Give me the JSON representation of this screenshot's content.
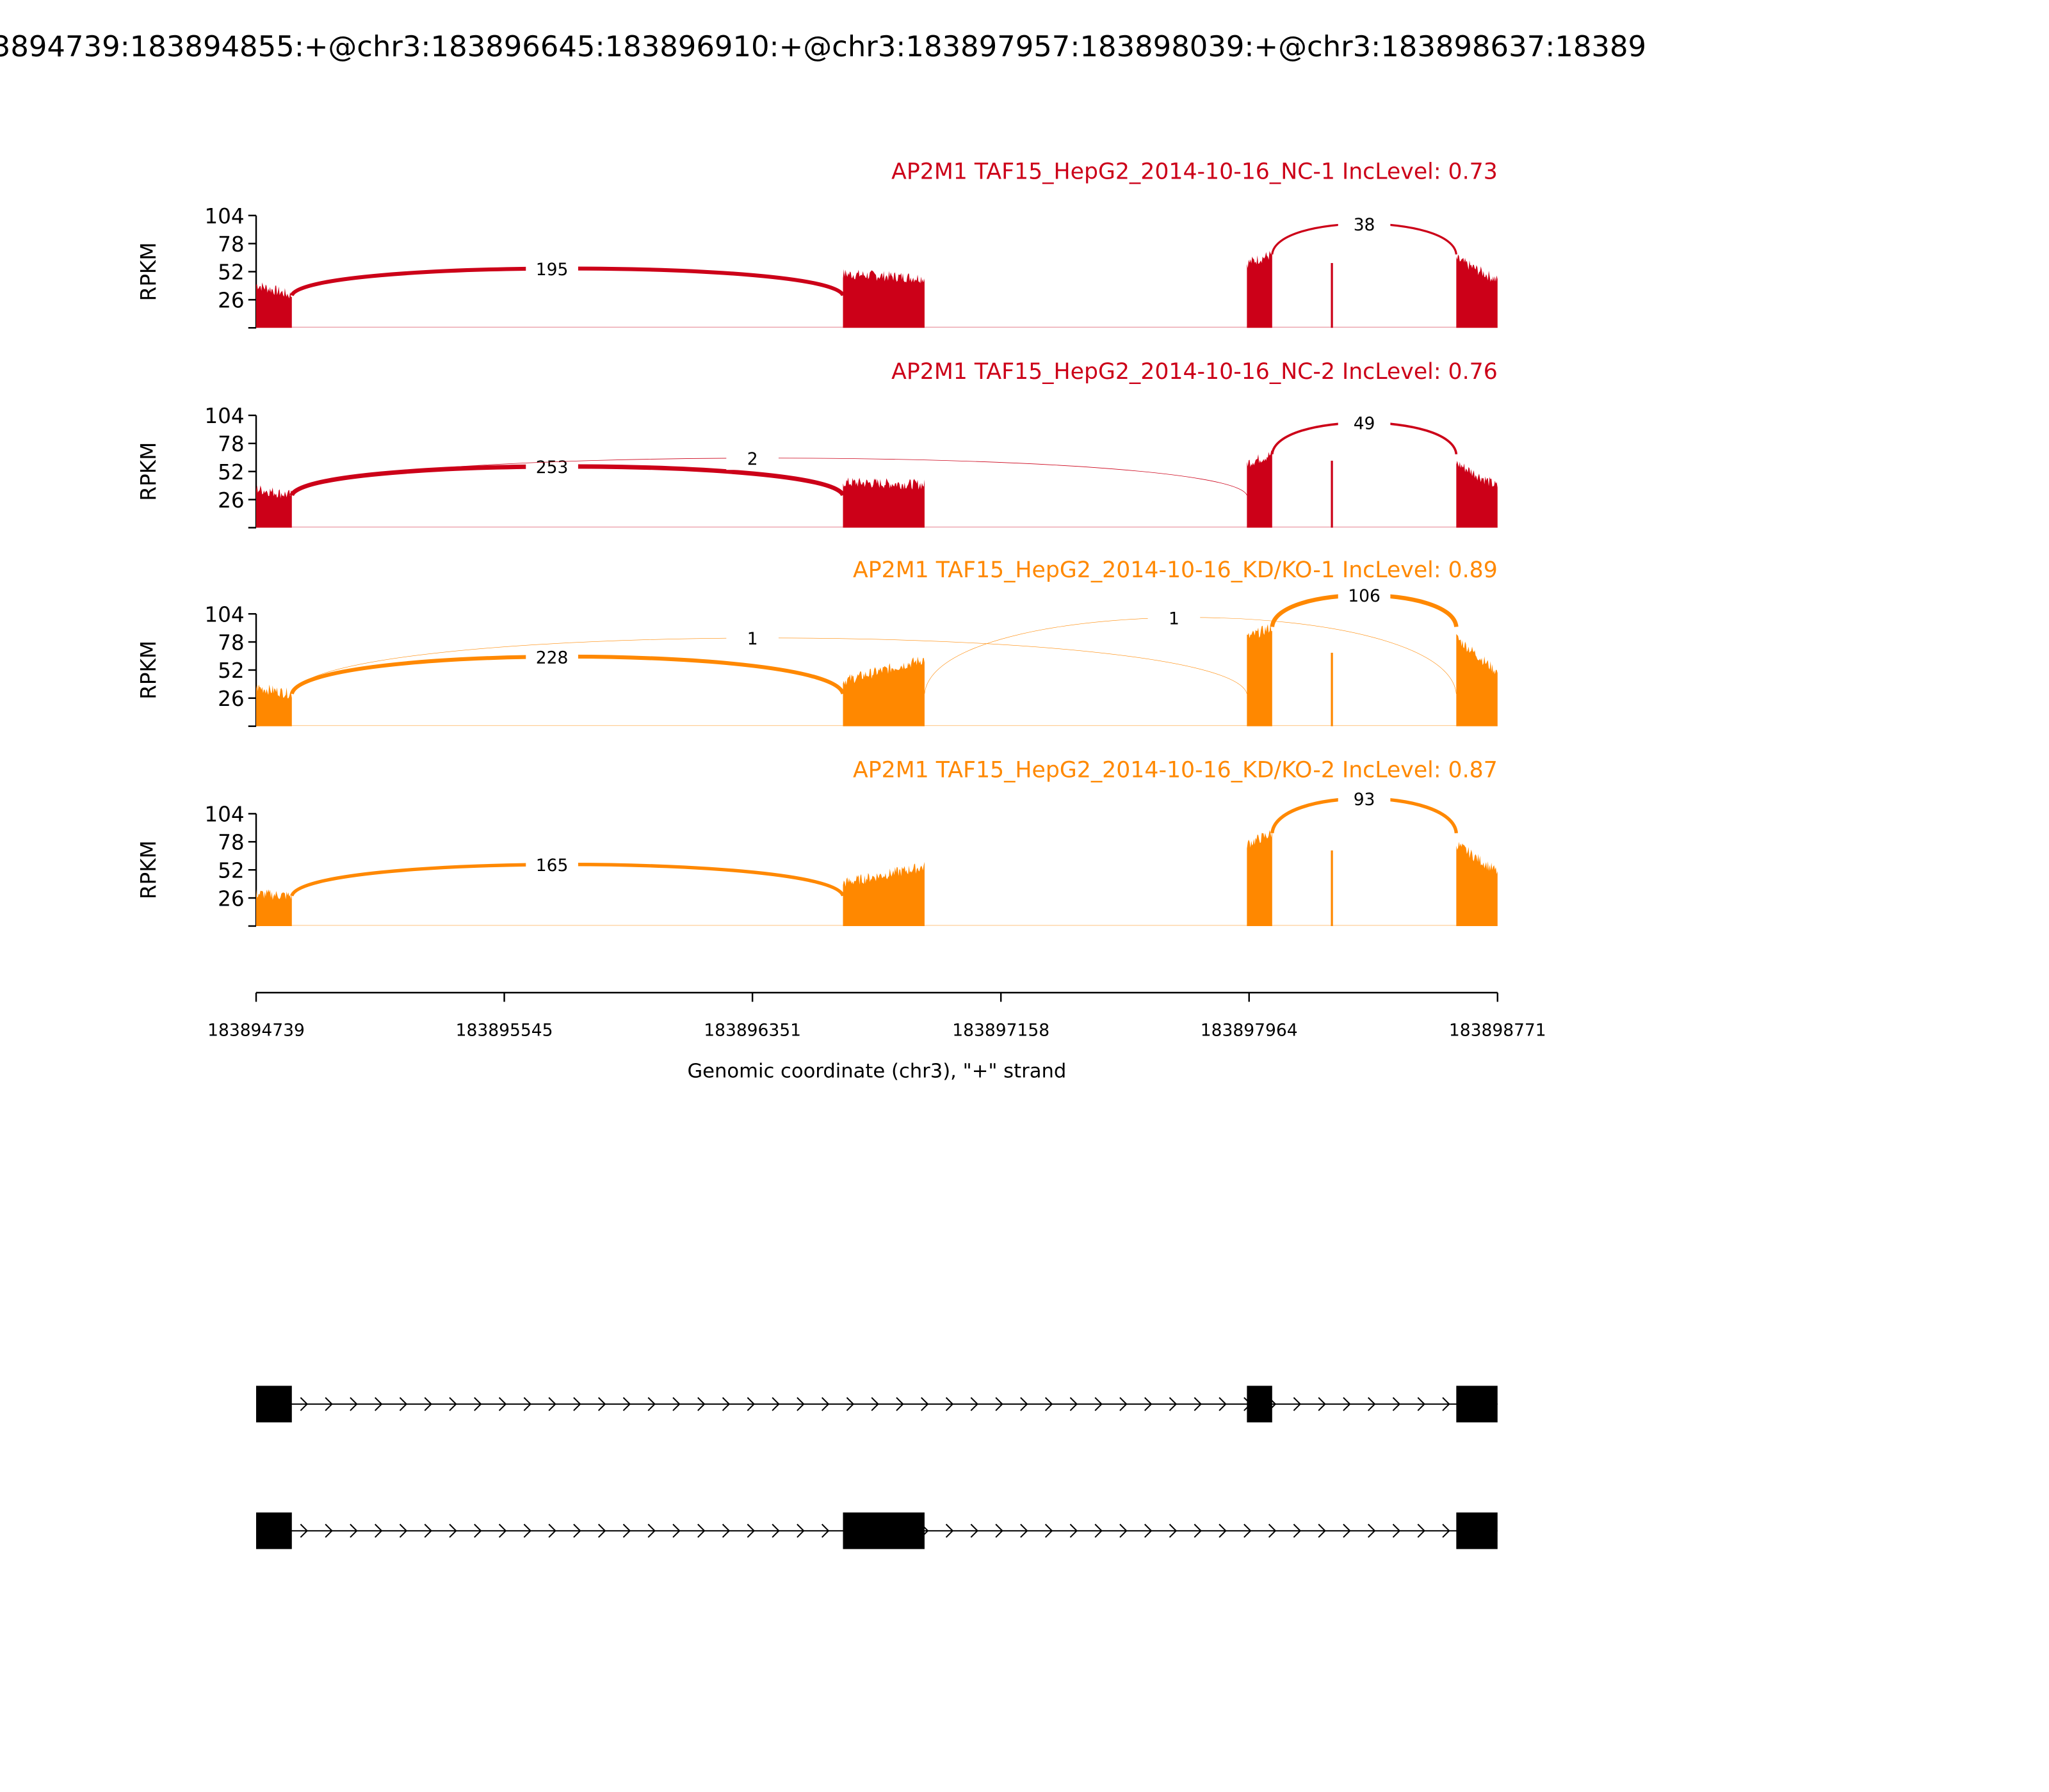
{
  "chart_data": {
    "type": "area",
    "title": "3894739:183894855:+@chr3:183896645:183896910:+@chr3:183897957:183898039:+@chr3:183898637:18389",
    "xlabel": "Genomic coordinate (chr3), \"+\" strand",
    "ylabel": "RPKM",
    "xlim": [
      183894739,
      183898771
    ],
    "ylim": [
      0,
      104
    ],
    "yticks": [
      "26",
      "52",
      "78",
      "104"
    ],
    "yticks_values": [
      26,
      52,
      78,
      104
    ],
    "xticks": [
      "183894739",
      "183895545",
      "183896351",
      "183897158",
      "183897964",
      "183898771"
    ],
    "xticks_values": [
      183894739,
      183895545,
      183896351,
      183897158,
      183897964,
      183898771
    ],
    "exons": [
      [
        183894739,
        183894855
      ],
      [
        183896645,
        183896910
      ],
      [
        183897957,
        183898039
      ],
      [
        183898637,
        183898771
      ]
    ],
    "spike_position": 183898233,
    "samples": [
      {
        "name": "AP2M1 TAF15_HepG2_2014-10-16_NC-1 IncLevel: 0.73",
        "color": "#cc0018",
        "coverage": [
          [
            40,
            30
          ],
          [
            50,
            46
          ],
          [
            60,
            68
          ],
          [
            64,
            44
          ]
        ],
        "spike": 60,
        "junctions": [
          {
            "start": 183894855,
            "end": 183896645,
            "count": "195",
            "peak_rpkm": 55,
            "label_pos": 183895700,
            "weight": 3
          },
          {
            "start": 183898039,
            "end": 183898637,
            "count": "38",
            "peak_rpkm": 92,
            "label_pos": 183898338,
            "weight": 1.6
          }
        ]
      },
      {
        "name": "AP2M1 TAF15_HepG2_2014-10-16_NC-2 IncLevel: 0.76",
        "color": "#cc0018",
        "coverage": [
          [
            36,
            30
          ],
          [
            42,
            40
          ],
          [
            60,
            68
          ],
          [
            60,
            38
          ]
        ],
        "spike": 62,
        "junctions": [
          {
            "start": 183894855,
            "end": 183896645,
            "count": "253",
            "peak_rpkm": 57,
            "label_pos": 183895700,
            "weight": 3.4
          },
          {
            "start": 183894855,
            "end": 183897957,
            "count": "2",
            "peak_rpkm": 66,
            "label_pos": 183896351,
            "weight": 0.4
          },
          {
            "start": 183898039,
            "end": 183898637,
            "count": "49",
            "peak_rpkm": 93,
            "label_pos": 183898338,
            "weight": 1.8
          }
        ]
      },
      {
        "name": "AP2M1 TAF15_HepG2_2014-10-16_KD/KO-1 IncLevel: 0.89",
        "color": "#ff8800",
        "coverage": [
          [
            36,
            30
          ],
          [
            42,
            62
          ],
          [
            82,
            92
          ],
          [
            82,
            50
          ]
        ],
        "spike": 68,
        "junctions": [
          {
            "start": 183894855,
            "end": 183896645,
            "count": "228",
            "peak_rpkm": 66,
            "label_pos": 183895700,
            "weight": 3
          },
          {
            "start": 183894855,
            "end": 183897957,
            "count": "1",
            "peak_rpkm": 86,
            "label_pos": 183896351,
            "weight": 0.3
          },
          {
            "start": 183896910,
            "end": 183898637,
            "count": "1",
            "peak_rpkm": 108,
            "label_pos": 183897720,
            "weight": 0.3
          },
          {
            "start": 183898039,
            "end": 183898637,
            "count": "106",
            "peak_rpkm": 114,
            "label_pos": 183898338,
            "weight": 3.2
          }
        ]
      },
      {
        "name": "AP2M1 TAF15_HepG2_2014-10-16_KD/KO-2 IncLevel: 0.87",
        "color": "#ff8800",
        "coverage": [
          [
            30,
            28
          ],
          [
            40,
            55
          ],
          [
            76,
            86
          ],
          [
            76,
            50
          ]
        ],
        "spike": 70,
        "junctions": [
          {
            "start": 183894855,
            "end": 183896645,
            "count": "165",
            "peak_rpkm": 58,
            "label_pos": 183895700,
            "weight": 2.6
          },
          {
            "start": 183898039,
            "end": 183898637,
            "count": "93",
            "peak_rpkm": 112,
            "label_pos": 183898338,
            "weight": 2.6
          }
        ]
      }
    ],
    "gene_models": [
      {
        "exons": [
          [
            183894739,
            183894855
          ],
          [
            183897957,
            183898039
          ],
          [
            183898637,
            183898771
          ]
        ]
      },
      {
        "exons": [
          [
            183894739,
            183894855
          ],
          [
            183896645,
            183896910
          ],
          [
            183898637,
            183898771
          ]
        ]
      }
    ]
  }
}
